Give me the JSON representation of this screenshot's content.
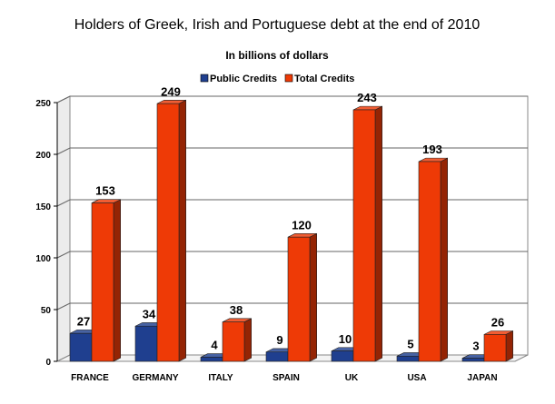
{
  "chart_data": {
    "type": "bar",
    "title": "Holders of Greek, Irish and Portuguese debt at the end of 2010",
    "subtitle": "In billions of dollars",
    "categories": [
      "FRANCE",
      "GERMANY",
      "ITALY",
      "SPAIN",
      "UK",
      "USA",
      "JAPAN"
    ],
    "series": [
      {
        "name": "Public Credits",
        "values": [
          27,
          34,
          4,
          9,
          10,
          5,
          3
        ],
        "color": "#1f3f8f"
      },
      {
        "name": "Total Credits",
        "values": [
          153,
          249,
          38,
          120,
          243,
          193,
          26
        ],
        "color": "#ee3a06"
      }
    ],
    "yticks": [
      0,
      50,
      100,
      150,
      200,
      250
    ],
    "ylim": [
      0,
      250
    ],
    "grid": true,
    "legend_position": "top"
  }
}
